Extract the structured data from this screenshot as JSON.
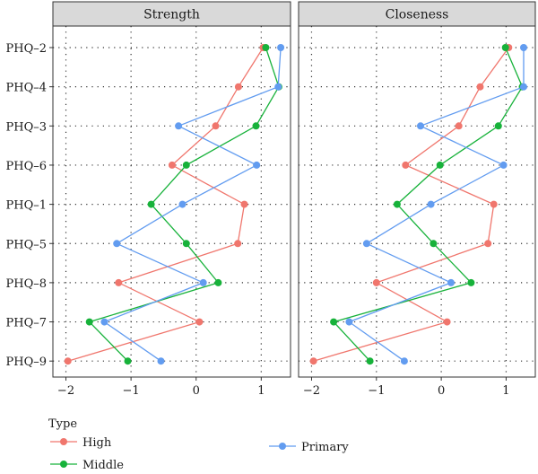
{
  "chart_data": {
    "type": "line",
    "panels": [
      {
        "title": "Strength",
        "series": [
          {
            "name": "High",
            "color": "#F0766D",
            "values": {
              "PHQ–2": 1.03,
              "PHQ–4": 0.65,
              "PHQ–3": 0.3,
              "PHQ–6": -0.37,
              "PHQ–1": 0.74,
              "PHQ–5": 0.64,
              "PHQ–8": -1.19,
              "PHQ–7": 0.05,
              "PHQ–9": -1.97
            }
          },
          {
            "name": "Middle",
            "color": "#17B23A",
            "values": {
              "PHQ–2": 1.07,
              "PHQ–4": 1.27,
              "PHQ–3": 0.92,
              "PHQ–6": -0.15,
              "PHQ–1": -0.69,
              "PHQ–5": -0.15,
              "PHQ–8": 0.34,
              "PHQ–7": -1.64,
              "PHQ–9": -1.05
            }
          },
          {
            "name": "Primary",
            "color": "#629CF0",
            "values": {
              "PHQ–2": 1.3,
              "PHQ–4": 1.26,
              "PHQ–3": -0.27,
              "PHQ–6": 0.93,
              "PHQ–1": -0.21,
              "PHQ–5": -1.22,
              "PHQ–8": 0.11,
              "PHQ–7": -1.41,
              "PHQ–9": -0.54
            }
          }
        ]
      },
      {
        "title": "Closeness",
        "series": [
          {
            "name": "High",
            "color": "#F0766D",
            "values": {
              "PHQ–2": 1.04,
              "PHQ–4": 0.6,
              "PHQ–3": 0.27,
              "PHQ–6": -0.55,
              "PHQ–1": 0.81,
              "PHQ–5": 0.72,
              "PHQ–8": -1.0,
              "PHQ–7": 0.09,
              "PHQ–9": -1.97
            }
          },
          {
            "name": "Middle",
            "color": "#17B23A",
            "values": {
              "PHQ–2": 0.99,
              "PHQ–4": 1.25,
              "PHQ–3": 0.88,
              "PHQ–6": -0.02,
              "PHQ–1": -0.68,
              "PHQ–5": -0.12,
              "PHQ–8": 0.46,
              "PHQ–7": -1.66,
              "PHQ–9": -1.1
            }
          },
          {
            "name": "Primary",
            "color": "#629CF0",
            "values": {
              "PHQ–2": 1.27,
              "PHQ–4": 1.27,
              "PHQ–3": -0.32,
              "PHQ–6": 0.96,
              "PHQ–1": -0.16,
              "PHQ–5": -1.15,
              "PHQ–8": 0.15,
              "PHQ–7": -1.42,
              "PHQ–9": -0.57
            }
          }
        ]
      }
    ],
    "categories": [
      "PHQ–2",
      "PHQ–4",
      "PHQ–3",
      "PHQ–6",
      "PHQ–1",
      "PHQ–5",
      "PHQ–8",
      "PHQ–7",
      "PHQ–9"
    ],
    "x_ticks": [
      -2,
      -1,
      0,
      1
    ],
    "x_tick_labels": [
      "−2",
      "−1",
      "0",
      "1"
    ],
    "xlim": [
      -2.2,
      1.45
    ],
    "xlabel": "",
    "ylabel": "",
    "grid": true,
    "legend": {
      "title": "Type",
      "placement": "bottom-left",
      "entries": [
        "High",
        "Middle",
        "Primary"
      ]
    }
  }
}
